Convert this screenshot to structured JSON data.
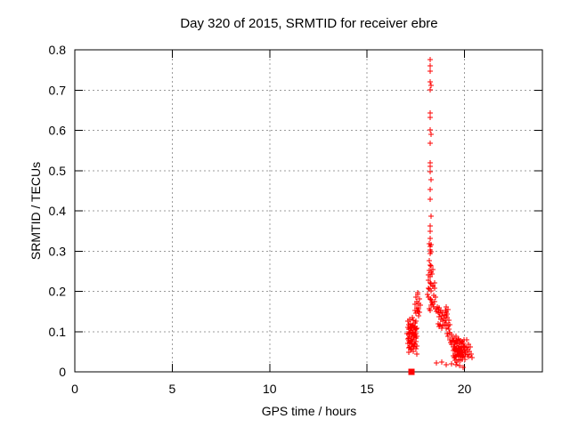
{
  "page": {
    "background": "#ffffff"
  },
  "chart_data": {
    "type": "scatter",
    "title": "Day 320 of 2015, SRMTID for receiver ebre",
    "xlabel": "GPS time / hours",
    "ylabel": "SRMTID / TECUs",
    "xlim": [
      0,
      24
    ],
    "ylim": [
      0,
      0.8
    ],
    "xticks": [
      {
        "v": 0,
        "label": "0"
      },
      {
        "v": 5,
        "label": "5"
      },
      {
        "v": 10,
        "label": "10"
      },
      {
        "v": 15,
        "label": "15"
      },
      {
        "v": 20,
        "label": "20"
      }
    ],
    "yticks": [
      {
        "v": 0.0,
        "label": "0"
      },
      {
        "v": 0.1,
        "label": "0.1"
      },
      {
        "v": 0.2,
        "label": "0.2"
      },
      {
        "v": 0.3,
        "label": "0.3"
      },
      {
        "v": 0.4,
        "label": "0.4"
      },
      {
        "v": 0.5,
        "label": "0.5"
      },
      {
        "v": 0.6,
        "label": "0.6"
      },
      {
        "v": 0.7,
        "label": "0.7"
      },
      {
        "v": 0.8,
        "label": "0.8"
      }
    ],
    "grid": true,
    "legend": false,
    "colors": {
      "marker": "#ff0000",
      "grid": "#9c9c9c",
      "axis": "#000000"
    },
    "series": [
      {
        "marker": "plus",
        "color": "#ff0000",
        "points": [
          [
            17.06,
            0.095
          ],
          [
            17.08,
            0.082
          ],
          [
            17.09,
            0.11
          ],
          [
            17.1,
            0.07
          ],
          [
            17.11,
            0.125
          ],
          [
            17.12,
            0.092
          ],
          [
            17.13,
            0.06
          ],
          [
            17.14,
            0.105
          ],
          [
            17.15,
            0.085
          ],
          [
            17.16,
            0.118
          ],
          [
            17.17,
            0.072
          ],
          [
            17.18,
            0.098
          ],
          [
            17.19,
            0.13
          ],
          [
            17.2,
            0.062
          ],
          [
            17.21,
            0.088
          ],
          [
            17.22,
            0.112
          ],
          [
            17.23,
            0.078
          ],
          [
            17.24,
            0.1
          ],
          [
            17.25,
            0.12
          ],
          [
            17.26,
            0.068
          ],
          [
            17.27,
            0.092
          ],
          [
            17.28,
            0.108
          ],
          [
            17.29,
            0.058
          ],
          [
            17.3,
            0.082
          ],
          [
            17.31,
            0.115
          ],
          [
            17.32,
            0.096
          ],
          [
            17.33,
            0.07
          ],
          [
            17.34,
            0.104
          ],
          [
            17.35,
            0.128
          ],
          [
            17.36,
            0.086
          ],
          [
            17.37,
            0.065
          ],
          [
            17.38,
            0.098
          ],
          [
            17.39,
            0.118
          ],
          [
            17.4,
            0.075
          ],
          [
            17.41,
            0.09
          ],
          [
            17.42,
            0.11
          ],
          [
            17.43,
            0.08
          ],
          [
            17.44,
            0.1
          ],
          [
            17.45,
            0.122
          ],
          [
            17.46,
            0.068
          ],
          [
            17.47,
            0.094
          ],
          [
            17.48,
            0.112
          ],
          [
            17.49,
            0.058
          ],
          [
            17.5,
            0.085
          ],
          [
            17.51,
            0.105
          ],
          [
            17.52,
            0.076
          ],
          [
            17.53,
            0.096
          ],
          [
            17.54,
            0.065
          ],
          [
            17.55,
            0.088
          ],
          [
            17.56,
            0.108
          ],
          [
            17.13,
            0.078
          ],
          [
            17.23,
            0.055
          ],
          [
            17.33,
            0.135
          ],
          [
            17.43,
            0.062
          ],
          [
            17.53,
            0.125
          ],
          [
            17.45,
            0.152
          ],
          [
            17.48,
            0.168
          ],
          [
            17.5,
            0.185
          ],
          [
            17.52,
            0.145
          ],
          [
            17.55,
            0.175
          ],
          [
            17.57,
            0.16
          ],
          [
            17.6,
            0.192
          ],
          [
            17.62,
            0.15
          ],
          [
            17.64,
            0.17
          ],
          [
            17.66,
            0.158
          ],
          [
            17.68,
            0.182
          ],
          [
            17.7,
            0.148
          ],
          [
            17.72,
            0.165
          ],
          [
            17.58,
            0.196
          ],
          [
            17.63,
            0.14
          ],
          [
            17.15,
            0.048
          ],
          [
            17.35,
            0.05
          ],
          [
            17.55,
            0.045
          ],
          [
            18.25,
            0.775
          ],
          [
            18.25,
            0.76
          ],
          [
            18.26,
            0.746
          ],
          [
            18.24,
            0.721
          ],
          [
            18.27,
            0.712
          ],
          [
            18.25,
            0.7
          ],
          [
            18.26,
            0.642
          ],
          [
            18.24,
            0.633
          ],
          [
            18.25,
            0.601
          ],
          [
            18.27,
            0.59
          ],
          [
            18.25,
            0.567
          ],
          [
            18.26,
            0.519
          ],
          [
            18.23,
            0.511
          ],
          [
            18.25,
            0.497
          ],
          [
            18.27,
            0.478
          ],
          [
            18.24,
            0.452
          ],
          [
            18.26,
            0.428
          ],
          [
            18.27,
            0.387
          ],
          [
            18.23,
            0.362
          ],
          [
            18.25,
            0.349
          ],
          [
            18.2,
            0.318
          ],
          [
            18.24,
            0.312
          ],
          [
            18.28,
            0.316
          ],
          [
            18.22,
            0.302
          ],
          [
            18.3,
            0.298
          ],
          [
            18.26,
            0.331
          ],
          [
            18.24,
            0.293
          ],
          [
            18.18,
            0.277
          ],
          [
            18.24,
            0.265
          ],
          [
            18.3,
            0.262
          ],
          [
            18.21,
            0.252
          ],
          [
            18.27,
            0.248
          ],
          [
            18.33,
            0.244
          ],
          [
            18.15,
            0.24
          ],
          [
            18.24,
            0.236
          ],
          [
            18.36,
            0.255
          ],
          [
            18.17,
            0.228
          ],
          [
            18.24,
            0.222
          ],
          [
            18.3,
            0.218
          ],
          [
            18.36,
            0.214
          ],
          [
            18.13,
            0.208
          ],
          [
            18.21,
            0.205
          ],
          [
            18.28,
            0.201
          ],
          [
            18.4,
            0.212
          ],
          [
            18.45,
            0.222
          ],
          [
            18.48,
            0.208
          ],
          [
            18.12,
            0.192
          ],
          [
            18.17,
            0.186
          ],
          [
            18.22,
            0.182
          ],
          [
            18.27,
            0.178
          ],
          [
            18.32,
            0.172
          ],
          [
            18.37,
            0.168
          ],
          [
            18.42,
            0.162
          ],
          [
            18.19,
            0.158
          ],
          [
            18.24,
            0.152
          ],
          [
            18.3,
            0.165
          ],
          [
            18.47,
            0.175
          ],
          [
            18.52,
            0.158
          ],
          [
            18.56,
            0.15
          ],
          [
            18.44,
            0.19
          ],
          [
            18.5,
            0.185
          ],
          [
            18.6,
            0.162
          ],
          [
            18.63,
            0.148
          ],
          [
            18.66,
            0.155
          ],
          [
            18.69,
            0.138
          ],
          [
            18.72,
            0.16
          ],
          [
            18.75,
            0.145
          ],
          [
            18.78,
            0.13
          ],
          [
            18.81,
            0.152
          ],
          [
            18.84,
            0.14
          ],
          [
            18.87,
            0.125
          ],
          [
            18.9,
            0.148
          ],
          [
            18.93,
            0.132
          ],
          [
            18.96,
            0.118
          ],
          [
            18.99,
            0.142
          ],
          [
            18.64,
            0.12
          ],
          [
            18.7,
            0.112
          ],
          [
            18.76,
            0.118
          ],
          [
            18.82,
            0.108
          ],
          [
            18.88,
            0.115
          ],
          [
            19.02,
            0.152
          ],
          [
            19.08,
            0.148
          ],
          [
            19.14,
            0.155
          ],
          [
            19.05,
            0.161
          ],
          [
            19.11,
            0.143
          ],
          [
            19.02,
            0.128
          ],
          [
            19.05,
            0.108
          ],
          [
            19.08,
            0.122
          ],
          [
            19.11,
            0.095
          ],
          [
            19.14,
            0.115
          ],
          [
            19.17,
            0.088
          ],
          [
            19.2,
            0.105
          ],
          [
            19.23,
            0.08
          ],
          [
            19.26,
            0.098
          ],
          [
            19.29,
            0.072
          ],
          [
            19.32,
            0.092
          ],
          [
            19.35,
            0.068
          ],
          [
            19.38,
            0.085
          ],
          [
            19.41,
            0.062
          ],
          [
            19.44,
            0.078
          ],
          [
            19.47,
            0.058
          ],
          [
            19.5,
            0.072
          ],
          [
            19.06,
            0.14
          ],
          [
            19.12,
            0.135
          ],
          [
            19.18,
            0.128
          ],
          [
            19.24,
            0.118
          ],
          [
            19.42,
            0.052
          ],
          [
            19.44,
            0.04
          ],
          [
            19.46,
            0.062
          ],
          [
            19.48,
            0.035
          ],
          [
            19.5,
            0.055
          ],
          [
            19.52,
            0.045
          ],
          [
            19.54,
            0.068
          ],
          [
            19.56,
            0.038
          ],
          [
            19.58,
            0.058
          ],
          [
            19.6,
            0.048
          ],
          [
            19.62,
            0.07
          ],
          [
            19.64,
            0.042
          ],
          [
            19.66,
            0.06
          ],
          [
            19.68,
            0.032
          ],
          [
            19.7,
            0.052
          ],
          [
            19.72,
            0.065
          ],
          [
            19.74,
            0.045
          ],
          [
            19.76,
            0.058
          ],
          [
            19.78,
            0.038
          ],
          [
            19.8,
            0.05
          ],
          [
            19.82,
            0.062
          ],
          [
            19.84,
            0.042
          ],
          [
            19.86,
            0.055
          ],
          [
            19.88,
            0.035
          ],
          [
            19.9,
            0.048
          ],
          [
            19.92,
            0.06
          ],
          [
            19.94,
            0.04
          ],
          [
            19.96,
            0.052
          ],
          [
            19.98,
            0.065
          ],
          [
            20.0,
            0.045
          ],
          [
            20.02,
            0.055
          ],
          [
            20.04,
            0.038
          ],
          [
            19.45,
            0.075
          ],
          [
            19.55,
            0.078
          ],
          [
            19.65,
            0.08
          ],
          [
            19.75,
            0.072
          ],
          [
            19.85,
            0.068
          ],
          [
            19.95,
            0.07
          ],
          [
            19.5,
            0.028
          ],
          [
            19.6,
            0.025
          ],
          [
            19.7,
            0.03
          ],
          [
            19.8,
            0.028
          ],
          [
            19.9,
            0.032
          ],
          [
            20.0,
            0.03
          ],
          [
            19.48,
            0.085
          ],
          [
            19.58,
            0.088
          ],
          [
            19.68,
            0.082
          ],
          [
            19.78,
            0.078
          ],
          [
            19.88,
            0.075
          ],
          [
            19.98,
            0.08
          ],
          [
            19.52,
            0.058
          ],
          [
            19.62,
            0.05
          ],
          [
            19.72,
            0.04
          ],
          [
            19.82,
            0.055
          ],
          [
            19.92,
            0.045
          ],
          [
            20.02,
            0.062
          ],
          [
            20.06,
            0.048
          ],
          [
            20.1,
            0.06
          ],
          [
            20.14,
            0.042
          ],
          [
            20.18,
            0.055
          ],
          [
            20.22,
            0.038
          ],
          [
            20.26,
            0.05
          ],
          [
            20.3,
            0.062
          ],
          [
            20.34,
            0.045
          ],
          [
            20.38,
            0.035
          ],
          [
            20.12,
            0.08
          ],
          [
            20.2,
            0.068
          ],
          [
            18.55,
            0.022
          ],
          [
            19.05,
            0.018
          ],
          [
            19.35,
            0.02
          ],
          [
            19.75,
            0.015
          ],
          [
            19.95,
            0.012
          ],
          [
            18.85,
            0.025
          ],
          [
            19.55,
            0.018
          ]
        ]
      },
      {
        "marker": "filled-square",
        "color": "#ff0000",
        "points": [
          [
            17.3,
            0.0
          ]
        ]
      }
    ]
  }
}
